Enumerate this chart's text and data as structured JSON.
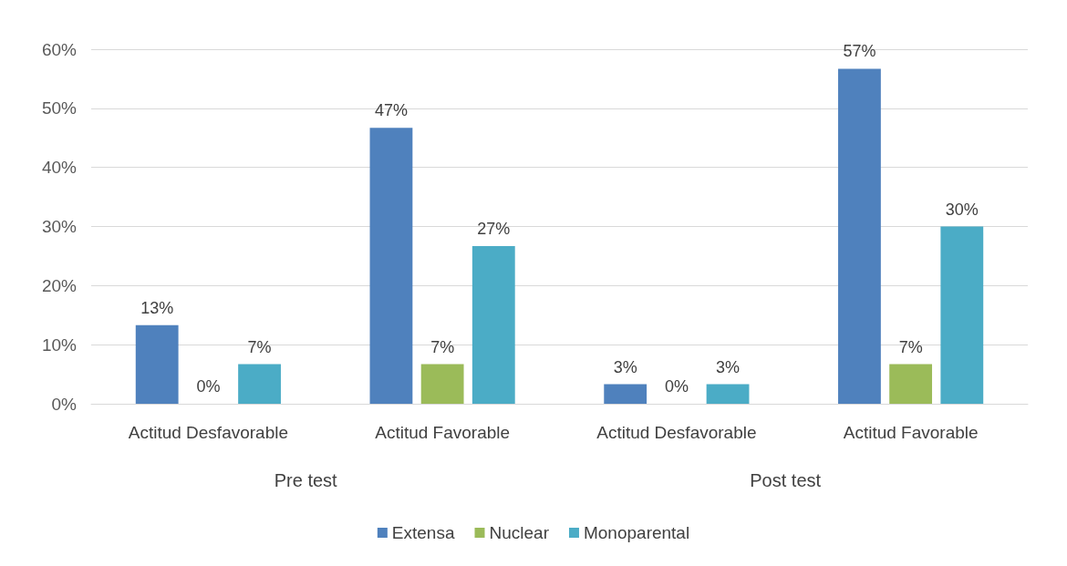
{
  "chart_data": {
    "type": "bar",
    "categories": [
      "Actitud Desfavorable",
      "Actitud Favorable",
      "Actitud Desfavorable",
      "Actitud Favorable"
    ],
    "series": [
      {
        "name": "Extensa",
        "color": "#4f81bd",
        "values": [
          13.3,
          46.7,
          3.3,
          56.7
        ],
        "value_labels": [
          "13%",
          "47%",
          "3%",
          "57%"
        ]
      },
      {
        "name": "Nuclear",
        "color": "#9bbb59",
        "values": [
          0,
          6.7,
          0,
          6.7
        ],
        "value_labels": [
          "0%",
          "7%",
          "0%",
          "7%"
        ]
      },
      {
        "name": "Monoparental",
        "color": "#4bacc6",
        "values": [
          6.7,
          26.7,
          3.3,
          30
        ],
        "value_labels": [
          "7%",
          "27%",
          "3%",
          "30%"
        ]
      }
    ],
    "ylim": [
      0,
      60
    ],
    "yticks": [
      {
        "value": 0,
        "label": "0%"
      },
      {
        "value": 10,
        "label": "10%"
      },
      {
        "value": 20,
        "label": "20%"
      },
      {
        "value": 30,
        "label": "30%"
      },
      {
        "value": 40,
        "label": "40%"
      },
      {
        "value": 50,
        "label": "50%"
      },
      {
        "value": 60,
        "label": "60%"
      }
    ],
    "annotations": [
      "Pre test",
      "Post test"
    ],
    "grid": "y",
    "legend": "bottom"
  }
}
